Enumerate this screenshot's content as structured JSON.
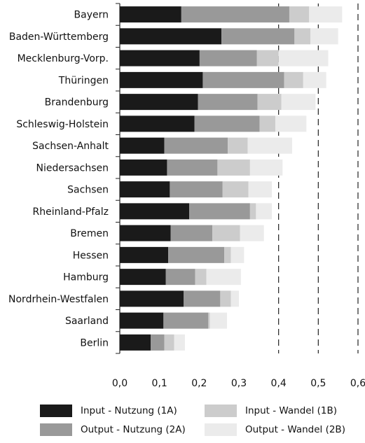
{
  "chart_data": {
    "type": "bar",
    "orientation": "horizontal",
    "stacked": true,
    "categories": [
      "Bayern",
      "Baden-Württemberg",
      "Mecklenburg-Vorp.",
      "Thüringen",
      "Brandenburg",
      "Schleswig-Holstein",
      "Sachsen-Anhalt",
      "Niedersachsen",
      "Sachsen",
      "Rheinland-Pfalz",
      "Bremen",
      "Hessen",
      "Hamburg",
      "Nordrhein-Westfalen",
      "Saarland",
      "Berlin"
    ],
    "series": [
      {
        "name": "Input - Nutzung (1A)",
        "color": "#1a1a1a",
        "values": [
          0.155,
          0.256,
          0.201,
          0.209,
          0.197,
          0.188,
          0.112,
          0.119,
          0.126,
          0.175,
          0.128,
          0.122,
          0.116,
          0.161,
          0.11,
          0.078
        ]
      },
      {
        "name": "Output - Nutzung (2A)",
        "color": "#999999",
        "values": [
          0.272,
          0.184,
          0.144,
          0.205,
          0.15,
          0.164,
          0.16,
          0.127,
          0.133,
          0.153,
          0.105,
          0.141,
          0.074,
          0.092,
          0.113,
          0.034
        ]
      },
      {
        "name": "Input - Wandel (1B)",
        "color": "#cccccc",
        "values": [
          0.05,
          0.04,
          0.055,
          0.048,
          0.06,
          0.04,
          0.05,
          0.082,
          0.065,
          0.015,
          0.07,
          0.017,
          0.028,
          0.027,
          0.004,
          0.025
        ]
      },
      {
        "name": "Output - Wandel (2B)",
        "color": "#ebebeb",
        "values": [
          0.083,
          0.07,
          0.125,
          0.058,
          0.086,
          0.078,
          0.112,
          0.082,
          0.059,
          0.04,
          0.06,
          0.033,
          0.087,
          0.02,
          0.043,
          0.027
        ]
      }
    ],
    "xticks": [
      "0,0",
      "0,1",
      "0,2",
      "0,3",
      "0,4",
      "0,5",
      "0,6"
    ],
    "xlim": [
      0,
      0.6
    ],
    "title": "",
    "xlabel": "",
    "ylabel": "",
    "grid": "vertical dashed lines at 0.4, 0.5 and 0.6",
    "legend": {
      "position": "bottom",
      "items": [
        "Input - Nutzung (1A)",
        "Input - Wandel (1B)",
        "Output - Nutzung (2A)",
        "Output - Wandel (2B)"
      ]
    }
  }
}
